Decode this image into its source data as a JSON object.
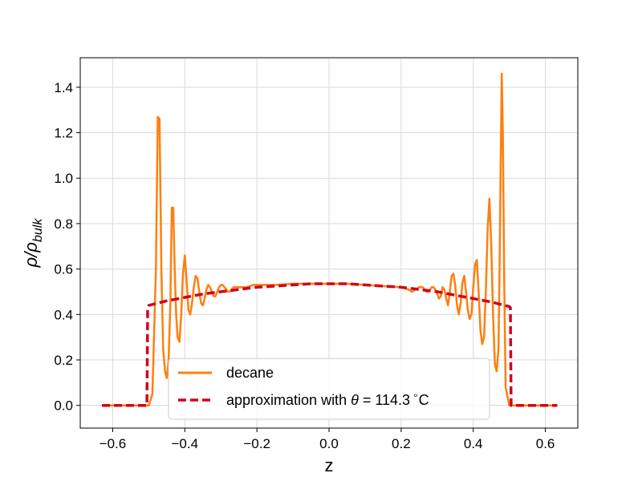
{
  "chart_data": {
    "type": "line",
    "title": "",
    "xlabel": "z",
    "ylabel_base": "ρ/ρ",
    "ylabel_sub": "bulk",
    "xlim": [
      -0.69,
      0.69
    ],
    "ylim": [
      -0.1,
      1.53
    ],
    "xticks": [
      -0.6,
      -0.4,
      -0.2,
      0.0,
      0.2,
      0.4,
      0.6
    ],
    "xtick_labels": [
      "−0.6",
      "−0.4",
      "−0.2",
      "0.0",
      "0.2",
      "0.4",
      "0.6"
    ],
    "yticks": [
      0.0,
      0.2,
      0.4,
      0.6,
      0.8,
      1.0,
      1.2,
      1.4
    ],
    "ytick_labels": [
      "0.0",
      "0.2",
      "0.4",
      "0.6",
      "0.8",
      "1.0",
      "1.2",
      "1.4"
    ],
    "grid": true,
    "legend_position": "lower-center",
    "series": [
      {
        "name": "decane",
        "color": "#ff7f0e",
        "style": "solid",
        "x": [
          -0.63,
          -0.505,
          -0.5,
          -0.49,
          -0.48,
          -0.475,
          -0.47,
          -0.468,
          -0.465,
          -0.46,
          -0.455,
          -0.45,
          -0.445,
          -0.44,
          -0.436,
          -0.432,
          -0.428,
          -0.424,
          -0.42,
          -0.415,
          -0.41,
          -0.405,
          -0.4,
          -0.395,
          -0.39,
          -0.385,
          -0.38,
          -0.375,
          -0.37,
          -0.365,
          -0.36,
          -0.355,
          -0.35,
          -0.345,
          -0.34,
          -0.335,
          -0.33,
          -0.325,
          -0.32,
          -0.315,
          -0.31,
          -0.305,
          -0.3,
          -0.295,
          -0.29,
          -0.285,
          -0.28,
          -0.275,
          -0.27,
          -0.265,
          -0.26,
          -0.25,
          -0.24,
          -0.23,
          -0.22,
          -0.21,
          -0.2,
          -0.15,
          -0.1,
          -0.05,
          0.0,
          0.05,
          0.1,
          0.15,
          0.2,
          0.21,
          0.22,
          0.23,
          0.24,
          0.25,
          0.26,
          0.265,
          0.27,
          0.275,
          0.28,
          0.285,
          0.29,
          0.295,
          0.3,
          0.305,
          0.31,
          0.315,
          0.32,
          0.325,
          0.33,
          0.335,
          0.34,
          0.345,
          0.35,
          0.355,
          0.36,
          0.365,
          0.37,
          0.375,
          0.38,
          0.385,
          0.39,
          0.395,
          0.4,
          0.405,
          0.41,
          0.415,
          0.42,
          0.425,
          0.43,
          0.435,
          0.44,
          0.445,
          0.45,
          0.455,
          0.46,
          0.465,
          0.47,
          0.473,
          0.476,
          0.479,
          0.482,
          0.486,
          0.49,
          0.5,
          0.51,
          0.633
        ],
        "y": [
          0.0,
          0.0,
          0.0,
          0.05,
          0.6,
          1.27,
          1.26,
          1.0,
          0.6,
          0.25,
          0.15,
          0.12,
          0.2,
          0.45,
          0.87,
          0.87,
          0.6,
          0.4,
          0.3,
          0.28,
          0.4,
          0.58,
          0.66,
          0.55,
          0.42,
          0.4,
          0.45,
          0.52,
          0.57,
          0.56,
          0.5,
          0.45,
          0.44,
          0.47,
          0.51,
          0.53,
          0.52,
          0.5,
          0.48,
          0.48,
          0.5,
          0.52,
          0.53,
          0.53,
          0.52,
          0.51,
          0.5,
          0.5,
          0.51,
          0.52,
          0.52,
          0.52,
          0.52,
          0.52,
          0.525,
          0.53,
          0.53,
          0.53,
          0.535,
          0.535,
          0.535,
          0.535,
          0.53,
          0.525,
          0.52,
          0.515,
          0.51,
          0.5,
          0.51,
          0.52,
          0.52,
          0.51,
          0.5,
          0.5,
          0.51,
          0.52,
          0.52,
          0.51,
          0.49,
          0.47,
          0.48,
          0.52,
          0.51,
          0.47,
          0.44,
          0.5,
          0.57,
          0.58,
          0.53,
          0.44,
          0.4,
          0.45,
          0.54,
          0.57,
          0.5,
          0.42,
          0.38,
          0.4,
          0.52,
          0.62,
          0.64,
          0.5,
          0.33,
          0.27,
          0.3,
          0.5,
          0.78,
          0.91,
          0.7,
          0.4,
          0.18,
          0.15,
          0.25,
          0.6,
          1.05,
          1.46,
          1.2,
          0.55,
          0.08,
          0.0,
          0.0,
          0.0
        ]
      },
      {
        "name": "approximation with θ = 114.3 °C",
        "color": "#d0021b",
        "style": "dashed",
        "x": [
          -0.63,
          -0.505,
          -0.503,
          -0.5,
          -0.45,
          -0.4,
          -0.35,
          -0.3,
          -0.25,
          -0.2,
          -0.15,
          -0.1,
          -0.05,
          0.0,
          0.05,
          0.1,
          0.15,
          0.2,
          0.25,
          0.3,
          0.35,
          0.4,
          0.45,
          0.5,
          0.503,
          0.505,
          0.633
        ],
        "y": [
          0.0,
          0.0,
          0.43,
          0.44,
          0.46,
          0.475,
          0.49,
          0.5,
          0.51,
          0.52,
          0.525,
          0.53,
          0.535,
          0.535,
          0.535,
          0.53,
          0.525,
          0.52,
          0.51,
          0.5,
          0.485,
          0.47,
          0.455,
          0.435,
          0.43,
          0.0,
          0.0
        ]
      }
    ],
    "legend": {
      "decane_label": "decane",
      "approx_prefix": "approximation with ",
      "approx_theta": "θ",
      "approx_suffix": " = 114.3",
      "approx_degree": "∘",
      "approx_unit": "C"
    }
  }
}
